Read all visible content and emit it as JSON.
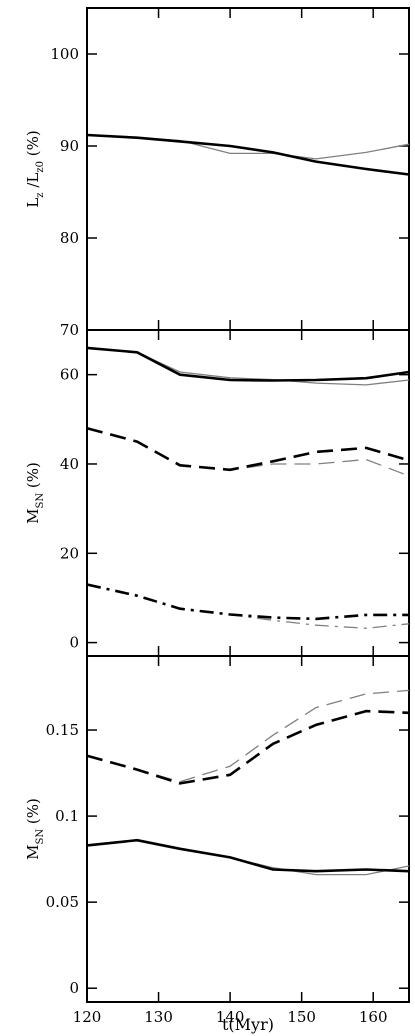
{
  "chart_data": [
    {
      "type": "line",
      "ylabel": {
        "main": "L",
        "sub": "z",
        "sep": " /",
        "main2": "L",
        "sub2": "z0",
        "unit": " (%)"
      },
      "xlim": [
        120,
        165
      ],
      "ylim": [
        70,
        105
      ],
      "yticks": [
        70,
        80,
        90,
        100
      ],
      "yticklabels": [
        "70",
        "80",
        "90",
        "100"
      ],
      "series": [
        {
          "style": "solid",
          "color": "#000000",
          "weight": "thick",
          "x": [
            120,
            127,
            133,
            140,
            146,
            152,
            159,
            165
          ],
          "y": [
            91.2,
            90.9,
            90.5,
            90.0,
            89.3,
            88.3,
            87.5,
            86.9
          ]
        },
        {
          "style": "solid",
          "color": "#808080",
          "weight": "thin",
          "x": [
            120,
            127,
            133,
            140,
            146,
            152,
            159,
            165
          ],
          "y": [
            91.2,
            90.9,
            90.6,
            89.2,
            89.2,
            88.6,
            89.3,
            90.2
          ]
        }
      ]
    },
    {
      "type": "line",
      "ylabel": {
        "main": "M",
        "sub": "SN",
        "unit": " (%)"
      },
      "xlim": [
        120,
        165
      ],
      "ylim": [
        -3,
        70
      ],
      "yticks": [
        0,
        20,
        40,
        60
      ],
      "yticklabels": [
        "0",
        "20",
        "40",
        "60"
      ],
      "series": [
        {
          "style": "solid",
          "color": "#000000",
          "weight": "thick",
          "x": [
            120,
            127,
            133,
            140,
            146,
            152,
            159,
            165
          ],
          "y": [
            66.0,
            65.0,
            60.0,
            58.8,
            58.7,
            58.8,
            59.2,
            60.6
          ]
        },
        {
          "style": "solid",
          "color": "#808080",
          "weight": "thin",
          "x": [
            120,
            127,
            133,
            140,
            146,
            152,
            159,
            165
          ],
          "y": [
            66.0,
            65.0,
            60.6,
            59.3,
            58.9,
            58.1,
            57.7,
            58.8
          ]
        },
        {
          "style": "dashed",
          "color": "#000000",
          "weight": "thick",
          "x": [
            120,
            127,
            133,
            140,
            146,
            152,
            159,
            165
          ],
          "y": [
            48.0,
            45.0,
            39.7,
            38.7,
            40.6,
            42.7,
            43.6,
            40.8
          ]
        },
        {
          "style": "dashed",
          "color": "#808080",
          "weight": "thin",
          "x": [
            120,
            127,
            133,
            140,
            146,
            152,
            159,
            165
          ],
          "y": [
            48.0,
            45.0,
            39.7,
            38.7,
            40.0,
            40.0,
            41.0,
            37.3
          ]
        },
        {
          "style": "dashdot",
          "color": "#000000",
          "weight": "thick",
          "x": [
            120,
            127,
            133,
            140,
            146,
            152,
            159,
            165
          ],
          "y": [
            13.0,
            10.5,
            7.6,
            6.3,
            5.6,
            5.3,
            6.2,
            6.2
          ]
        },
        {
          "style": "dashdot",
          "color": "#808080",
          "weight": "thin",
          "x": [
            120,
            127,
            133,
            140,
            146,
            152,
            159,
            165
          ],
          "y": [
            13.0,
            10.5,
            7.6,
            6.3,
            5.0,
            3.9,
            3.2,
            4.2
          ]
        }
      ]
    },
    {
      "type": "line",
      "ylabel": {
        "main": "M",
        "sub": "SN",
        "unit": " (%)"
      },
      "xlabel": "t(Myr)",
      "xlim": [
        120,
        165
      ],
      "xticks": [
        120,
        130,
        140,
        150,
        160
      ],
      "xticklabels": [
        "120",
        "130",
        "140",
        "150",
        "160"
      ],
      "ylim": [
        -0.008,
        0.193
      ],
      "yticks": [
        0,
        0.05,
        0.1,
        0.15
      ],
      "yticklabels": [
        "0",
        "0.05",
        "0.1",
        "0.15"
      ],
      "series": [
        {
          "style": "dashed",
          "color": "#000000",
          "weight": "thick",
          "x": [
            120,
            127,
            133,
            140,
            146,
            152,
            159,
            165
          ],
          "y": [
            0.135,
            0.127,
            0.119,
            0.124,
            0.142,
            0.153,
            0.161,
            0.16
          ]
        },
        {
          "style": "dashed",
          "color": "#808080",
          "weight": "thin",
          "x": [
            120,
            127,
            133,
            140,
            146,
            152,
            159,
            165
          ],
          "y": [
            0.135,
            0.127,
            0.12,
            0.129,
            0.147,
            0.163,
            0.171,
            0.173
          ]
        },
        {
          "style": "solid",
          "color": "#000000",
          "weight": "thick",
          "x": [
            120,
            127,
            133,
            140,
            146,
            152,
            159,
            165
          ],
          "y": [
            0.083,
            0.086,
            0.081,
            0.076,
            0.069,
            0.068,
            0.069,
            0.068
          ]
        },
        {
          "style": "solid",
          "color": "#808080",
          "weight": "thin",
          "x": [
            120,
            127,
            133,
            140,
            146,
            152,
            159,
            165
          ],
          "y": [
            0.083,
            0.086,
            0.081,
            0.076,
            0.07,
            0.066,
            0.066,
            0.071
          ]
        }
      ]
    }
  ]
}
